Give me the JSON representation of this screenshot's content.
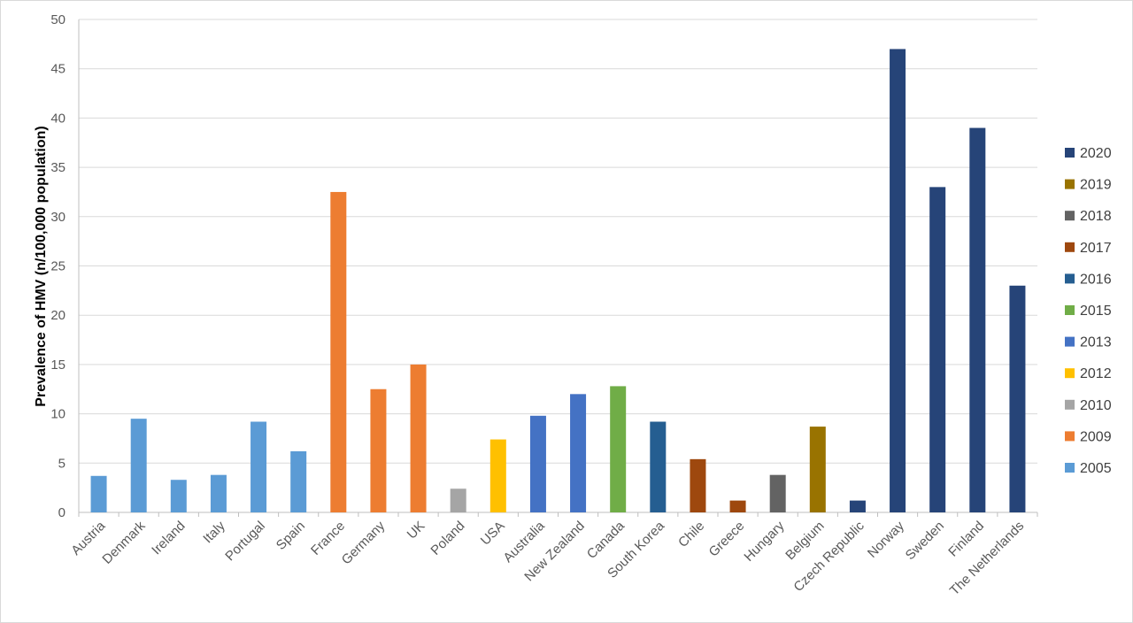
{
  "chart_data": {
    "type": "bar",
    "title": "",
    "xlabel": "",
    "ylabel": "Prevalence of HMV (n/100,000 population)",
    "ylim": [
      0,
      50
    ],
    "yticks": [
      "0",
      "5",
      "10",
      "15",
      "20",
      "25",
      "30",
      "35",
      "40",
      "45",
      "50"
    ],
    "grid": true,
    "legend_position": "right",
    "categories": [
      "Austria",
      "Denmark",
      "Ireland",
      "Italy",
      "Portugal",
      "Spain",
      "France",
      "Germany",
      "UK",
      "Poland",
      "USA",
      "Australia",
      "New Zealand",
      "Canada",
      "South Korea",
      "Chile",
      "Greece",
      "Hungary",
      "Belgium",
      "Czech Republic",
      "Norway",
      "Sweden",
      "Finland",
      "The Netherlands"
    ],
    "values": [
      3.7,
      9.5,
      3.3,
      3.8,
      9.2,
      6.2,
      32.5,
      12.5,
      15,
      2.4,
      7.4,
      9.8,
      12,
      12.8,
      9.2,
      5.4,
      1.2,
      3.8,
      8.7,
      1.2,
      47,
      33,
      39,
      23
    ],
    "years": [
      "2005",
      "2005",
      "2005",
      "2005",
      "2005",
      "2005",
      "2009",
      "2009",
      "2009",
      "2010",
      "2012",
      "2013",
      "2013",
      "2015",
      "2016",
      "2017",
      "2017",
      "2018",
      "2019",
      "2020",
      "2020",
      "2020",
      "2020",
      "2020"
    ],
    "legend": [
      {
        "label": "2020",
        "color": "#264478"
      },
      {
        "label": "2019",
        "color": "#997300"
      },
      {
        "label": "2018",
        "color": "#636363"
      },
      {
        "label": "2017",
        "color": "#9E480E"
      },
      {
        "label": "2016",
        "color": "#255E91"
      },
      {
        "label": "2015",
        "color": "#70AD47"
      },
      {
        "label": "2013",
        "color": "#4472C4"
      },
      {
        "label": "2012",
        "color": "#FFC000"
      },
      {
        "label": "2010",
        "color": "#A5A5A5"
      },
      {
        "label": "2009",
        "color": "#ED7D31"
      },
      {
        "label": "2005",
        "color": "#5B9BD5"
      }
    ]
  }
}
